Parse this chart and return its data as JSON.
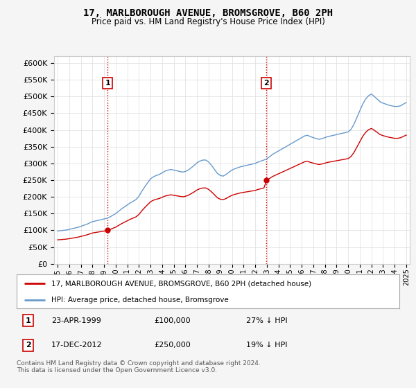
{
  "title": "17, MARLBOROUGH AVENUE, BROMSGROVE, B60 2PH",
  "subtitle": "Price paid vs. HM Land Registry's House Price Index (HPI)",
  "legend_line1": "17, MARLBOROUGH AVENUE, BROMSGROVE, B60 2PH (detached house)",
  "legend_line2": "HPI: Average price, detached house, Bromsgrove",
  "footnote": "Contains HM Land Registry data © Crown copyright and database right 2024.\nThis data is licensed under the Open Government Licence v3.0.",
  "sale1_date": "23-APR-1999",
  "sale1_price_str": "£100,000",
  "sale1_hpi": "27% ↓ HPI",
  "sale1_price": 100000,
  "sale1_year": 1999.3,
  "sale2_date": "17-DEC-2012",
  "sale2_price_str": "£250,000",
  "sale2_hpi": "19% ↓ HPI",
  "sale2_price": 250000,
  "sale2_year": 2012.96,
  "hpi_color": "#6699cc",
  "sale_color": "#cc0000",
  "ylim_min": 0,
  "ylim_max": 620000,
  "yticks": [
    0,
    50000,
    100000,
    150000,
    200000,
    250000,
    300000,
    350000,
    400000,
    450000,
    500000,
    550000,
    600000
  ],
  "background_color": "#f5f5f5",
  "plot_bg_color": "#ffffff",
  "hpi_data": [
    [
      1995.0,
      98000
    ],
    [
      1995.25,
      99000
    ],
    [
      1995.5,
      100000
    ],
    [
      1995.75,
      101000
    ],
    [
      1996.0,
      103000
    ],
    [
      1996.25,
      105000
    ],
    [
      1996.5,
      107000
    ],
    [
      1996.75,
      109000
    ],
    [
      1997.0,
      112000
    ],
    [
      1997.25,
      115000
    ],
    [
      1997.5,
      118000
    ],
    [
      1997.75,
      122000
    ],
    [
      1998.0,
      126000
    ],
    [
      1998.25,
      128000
    ],
    [
      1998.5,
      130000
    ],
    [
      1998.75,
      132000
    ],
    [
      1999.0,
      134000
    ],
    [
      1999.25,
      136000
    ],
    [
      1999.5,
      140000
    ],
    [
      1999.75,
      145000
    ],
    [
      2000.0,
      150000
    ],
    [
      2000.25,
      157000
    ],
    [
      2000.5,
      164000
    ],
    [
      2000.75,
      170000
    ],
    [
      2001.0,
      176000
    ],
    [
      2001.25,
      182000
    ],
    [
      2001.5,
      187000
    ],
    [
      2001.75,
      192000
    ],
    [
      2002.0,
      202000
    ],
    [
      2002.25,
      217000
    ],
    [
      2002.5,
      230000
    ],
    [
      2002.75,
      242000
    ],
    [
      2003.0,
      254000
    ],
    [
      2003.25,
      260000
    ],
    [
      2003.5,
      264000
    ],
    [
      2003.75,
      267000
    ],
    [
      2004.0,
      272000
    ],
    [
      2004.25,
      277000
    ],
    [
      2004.5,
      280000
    ],
    [
      2004.75,
      282000
    ],
    [
      2005.0,
      280000
    ],
    [
      2005.25,
      278000
    ],
    [
      2005.5,
      276000
    ],
    [
      2005.75,
      274000
    ],
    [
      2006.0,
      276000
    ],
    [
      2006.25,
      280000
    ],
    [
      2006.5,
      287000
    ],
    [
      2006.75,
      294000
    ],
    [
      2007.0,
      302000
    ],
    [
      2007.25,
      307000
    ],
    [
      2007.5,
      310000
    ],
    [
      2007.75,
      310000
    ],
    [
      2008.0,
      304000
    ],
    [
      2008.25,
      294000
    ],
    [
      2008.5,
      282000
    ],
    [
      2008.75,
      270000
    ],
    [
      2009.0,
      264000
    ],
    [
      2009.25,
      262000
    ],
    [
      2009.5,
      267000
    ],
    [
      2009.75,
      274000
    ],
    [
      2010.0,
      280000
    ],
    [
      2010.25,
      284000
    ],
    [
      2010.5,
      287000
    ],
    [
      2010.75,
      290000
    ],
    [
      2011.0,
      292000
    ],
    [
      2011.25,
      294000
    ],
    [
      2011.5,
      296000
    ],
    [
      2011.75,
      298000
    ],
    [
      2012.0,
      300000
    ],
    [
      2012.25,
      304000
    ],
    [
      2012.5,
      307000
    ],
    [
      2012.75,
      310000
    ],
    [
      2013.0,
      314000
    ],
    [
      2013.25,
      320000
    ],
    [
      2013.5,
      327000
    ],
    [
      2013.75,
      332000
    ],
    [
      2014.0,
      337000
    ],
    [
      2014.25,
      342000
    ],
    [
      2014.5,
      347000
    ],
    [
      2014.75,
      352000
    ],
    [
      2015.0,
      357000
    ],
    [
      2015.25,
      362000
    ],
    [
      2015.5,
      367000
    ],
    [
      2015.75,
      372000
    ],
    [
      2016.0,
      377000
    ],
    [
      2016.25,
      382000
    ],
    [
      2016.5,
      384000
    ],
    [
      2016.75,
      380000
    ],
    [
      2017.0,
      377000
    ],
    [
      2017.25,
      374000
    ],
    [
      2017.5,
      372000
    ],
    [
      2017.75,
      374000
    ],
    [
      2018.0,
      377000
    ],
    [
      2018.25,
      380000
    ],
    [
      2018.5,
      382000
    ],
    [
      2018.75,
      384000
    ],
    [
      2019.0,
      386000
    ],
    [
      2019.25,
      388000
    ],
    [
      2019.5,
      390000
    ],
    [
      2019.75,
      392000
    ],
    [
      2020.0,
      394000
    ],
    [
      2020.25,
      402000
    ],
    [
      2020.5,
      417000
    ],
    [
      2020.75,
      437000
    ],
    [
      2021.0,
      457000
    ],
    [
      2021.25,
      477000
    ],
    [
      2021.5,
      492000
    ],
    [
      2021.75,
      502000
    ],
    [
      2022.0,
      507000
    ],
    [
      2022.25,
      500000
    ],
    [
      2022.5,
      492000
    ],
    [
      2022.75,
      484000
    ],
    [
      2023.0,
      480000
    ],
    [
      2023.25,
      477000
    ],
    [
      2023.5,
      474000
    ],
    [
      2023.75,
      472000
    ],
    [
      2024.0,
      470000
    ],
    [
      2024.25,
      470000
    ],
    [
      2024.5,
      472000
    ],
    [
      2024.75,
      477000
    ],
    [
      2025.0,
      482000
    ]
  ]
}
